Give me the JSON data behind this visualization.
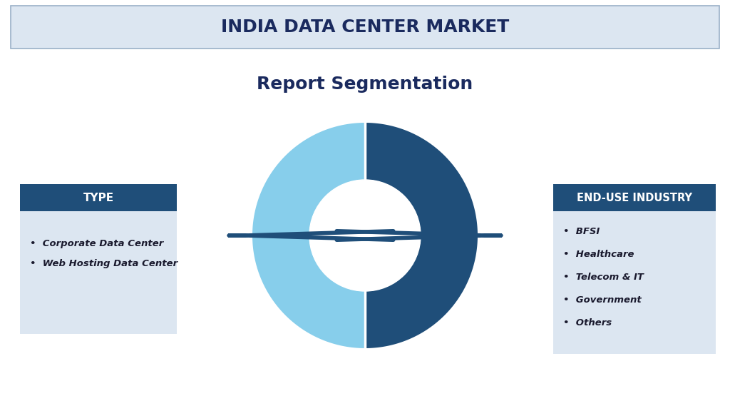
{
  "title": "INDIA DATA CENTER MARKET",
  "subtitle": "Report Segmentation",
  "title_bg": "#dce6f1",
  "title_color": "#1a2a5e",
  "title_border": "#9ab0c8",
  "header_bg": "#1f4e79",
  "header_text_color": "#ffffff",
  "box_bg": "#dce6f1",
  "box_border": "#9ab0c8",
  "left_header": "TYPE",
  "right_header": "END-USE INDUSTRY",
  "left_items": [
    "Corporate Data Center",
    "Web Hosting Data Center"
  ],
  "right_items": [
    "BFSI",
    "Healthcare",
    "Telecom & IT",
    "Government",
    "Others"
  ],
  "donut_color_left": "#87ceeb",
  "donut_color_right": "#1f4e79",
  "donut_center": "#ffffff",
  "arrow_color": "#1f4e79",
  "bg_color": "#ffffff",
  "subtitle_color": "#1a2a5e"
}
